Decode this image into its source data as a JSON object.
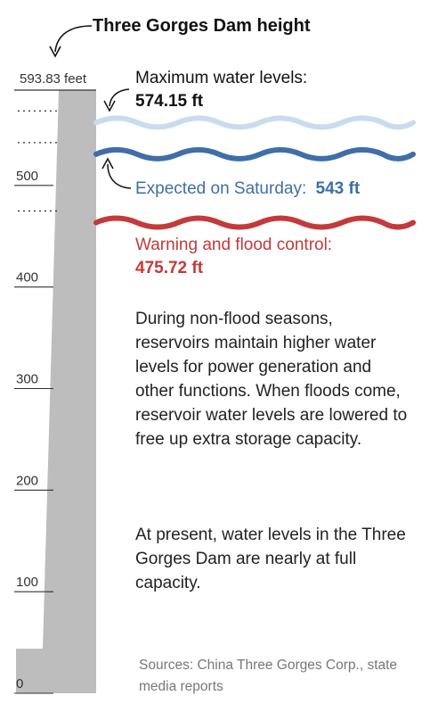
{
  "chart_data": {
    "type": "area",
    "title": "Three Gorges Dam height",
    "ylabel": "",
    "ylim": [
      0,
      593.83
    ],
    "y_ticks": [
      {
        "value": 0,
        "label": "0"
      },
      {
        "value": 100,
        "label": "100"
      },
      {
        "value": 200,
        "label": "200"
      },
      {
        "value": 300,
        "label": "300"
      },
      {
        "value": 400,
        "label": "400"
      },
      {
        "value": 500,
        "label": "500"
      }
    ],
    "dam": {
      "height_value": 593.83,
      "height_label": "593.83 feet"
    },
    "levels": [
      {
        "value": 574.15,
        "label": "Maximum water levels:",
        "value_label": "574.15 ft",
        "color": "#c9dcef"
      },
      {
        "value": 543,
        "label": "Expected on Saturday:",
        "value_label": "543 ft",
        "color": "#3f6ea8"
      },
      {
        "value": 475.72,
        "label": "Warning and flood control:",
        "value_label": "475.72 ft",
        "color": "#c4393a"
      }
    ]
  },
  "description_paragraphs": [
    "During non-flood seasons, reservoirs maintain higher water levels for power generation and other functions. When floods come, reservoir water levels are lowered to free up extra storage capacity.",
    "At present, water levels in the Three Gorges Dam are nearly at full capacity."
  ],
  "sources": "Sources: China Three Gorges Corp., state media reports",
  "colors": {
    "dam": "#bdbdbd",
    "tick": "#333333",
    "text": "#222222",
    "sources": "#777777"
  }
}
